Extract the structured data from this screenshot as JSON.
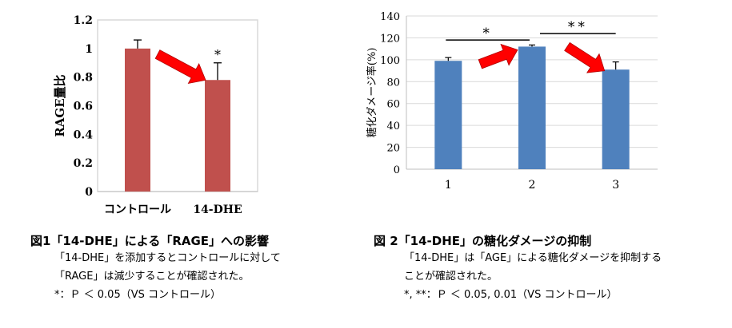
{
  "chart_data": [
    {
      "type": "bar",
      "ylabel": "RAGE量比",
      "categories": [
        "コントロール",
        "14-DHE"
      ],
      "values": [
        1.0,
        0.78
      ],
      "errors": [
        0.06,
        0.12
      ],
      "ylim": [
        0,
        1.2
      ],
      "yticks": [
        "0",
        "0.2",
        "0.4",
        "0.6",
        "0.8",
        "1",
        "1.2"
      ],
      "significance": [
        "",
        "*"
      ],
      "bar_color": "#c0504d",
      "arrow_color": "#ff0000",
      "grid": false
    },
    {
      "type": "bar",
      "ylabel": "糖化ダメージ率(%)",
      "categories": [
        "1",
        "2",
        "3"
      ],
      "values": [
        99,
        112,
        91
      ],
      "errors": [
        3,
        1.5,
        7
      ],
      "ylim": [
        0,
        140
      ],
      "yticks": [
        "0",
        "20",
        "40",
        "60",
        "80",
        "100",
        "120",
        "140"
      ],
      "brackets": [
        {
          "from": 0,
          "to": 1,
          "label": "*"
        },
        {
          "from": 1,
          "to": 2,
          "label": "**"
        }
      ],
      "bar_color": "#4f81bd",
      "arrow_color": "#ff0000",
      "grid": true
    }
  ],
  "captions": [
    {
      "title": "図1「14-DHE」による「RAGE」への影響",
      "lines": [
        "「14-DHE」を添加するとコントロールに対して",
        "「RAGE」は減少することが確認された。",
        "*：Ｐ ＜ 0.05（VS コントロール）"
      ]
    },
    {
      "title": "図 2「14-DHE」の糖化ダメージの抑制",
      "lines": [
        "「14-DHE」は「AGE」による糖化ダメージを抑制する",
        "ことが確認された。",
        "*, **：Ｐ ＜ 0.05, 0.01（VS コントロール）"
      ]
    }
  ]
}
